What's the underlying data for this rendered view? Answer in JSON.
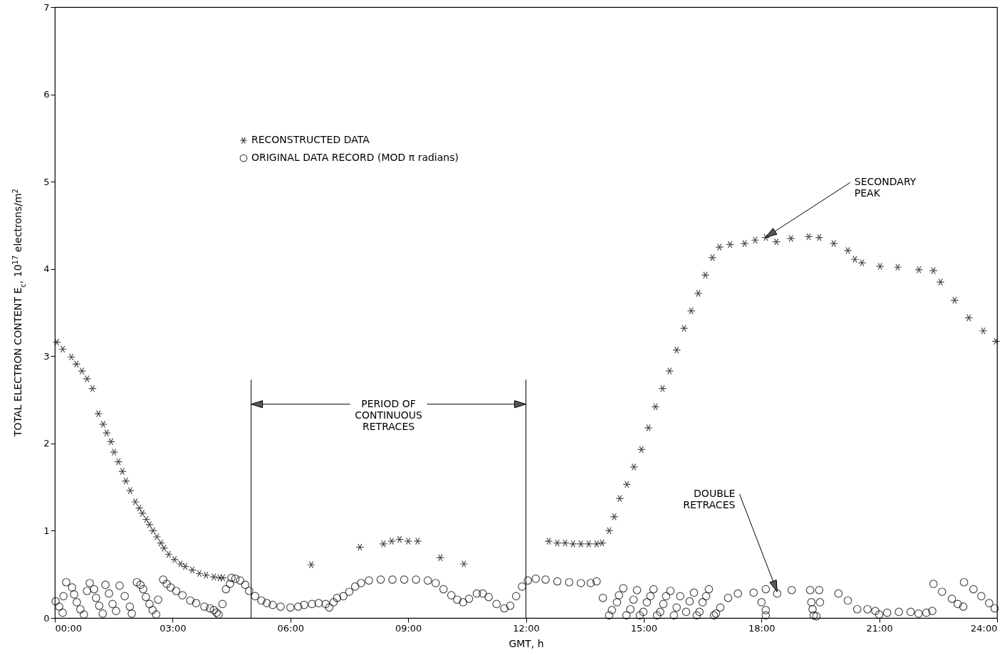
{
  "chart_data": {
    "type": "scatter",
    "xlabel": "GMT, h",
    "ylabel": "TOTAL ELECTRON CONTENT E$_{c}$, 10$^{17}$ electrons/m$^{2}$",
    "xlim": [
      0,
      24
    ],
    "ylim": [
      0,
      7
    ],
    "xticks": [
      {
        "value": 0,
        "label": "00:00"
      },
      {
        "value": 3,
        "label": "03:00"
      },
      {
        "value": 6,
        "label": "06:00"
      },
      {
        "value": 9,
        "label": "09:00"
      },
      {
        "value": 12,
        "label": "12:00"
      },
      {
        "value": 15,
        "label": "15:00"
      },
      {
        "value": 18,
        "label": "18:00"
      },
      {
        "value": 21,
        "label": "21:00"
      },
      {
        "value": 24,
        "label": "24:00"
      }
    ],
    "yticks": [
      0,
      1,
      2,
      3,
      4,
      5,
      6,
      7
    ],
    "grid": false,
    "legend": "top left",
    "series": [
      {
        "name": "RECONSTRUCTED DATA",
        "color": "#000000",
        "marker": "cross",
        "x": [
          0.05,
          0.2,
          0.42,
          0.55,
          0.69,
          0.82,
          0.96,
          1.11,
          1.23,
          1.32,
          1.43,
          1.51,
          1.62,
          1.72,
          1.81,
          1.92,
          2.05,
          2.15,
          2.23,
          2.33,
          2.41,
          2.5,
          2.6,
          2.7,
          2.78,
          2.9,
          3.05,
          3.2,
          3.32,
          3.5,
          3.68,
          3.85,
          4.05,
          4.2,
          4.28,
          6.53,
          7.77,
          8.37,
          8.58,
          8.78,
          9.0,
          9.24,
          9.82,
          10.42,
          12.58,
          12.8,
          13.0,
          13.2,
          13.4,
          13.6,
          13.8,
          13.94,
          14.12,
          14.25,
          14.39,
          14.57,
          14.75,
          14.94,
          15.12,
          15.3,
          15.48,
          15.66,
          15.84,
          16.03,
          16.21,
          16.39,
          16.57,
          16.75,
          16.93,
          17.2,
          17.57,
          17.84,
          18.11,
          18.38,
          18.75,
          19.2,
          19.47,
          19.84,
          20.2,
          20.38,
          20.56,
          21.02,
          21.47,
          22.01,
          22.38,
          22.56,
          22.92,
          23.28,
          23.65,
          23.97
        ],
        "values": [
          3.16,
          3.08,
          2.99,
          2.91,
          2.83,
          2.74,
          2.63,
          2.34,
          2.22,
          2.12,
          2.02,
          1.9,
          1.79,
          1.68,
          1.57,
          1.46,
          1.33,
          1.26,
          1.2,
          1.13,
          1.07,
          1.0,
          0.93,
          0.86,
          0.8,
          0.73,
          0.67,
          0.62,
          0.59,
          0.55,
          0.51,
          0.49,
          0.47,
          0.46,
          0.46,
          0.61,
          0.81,
          0.85,
          0.88,
          0.9,
          0.88,
          0.88,
          0.69,
          0.62,
          0.88,
          0.86,
          0.86,
          0.85,
          0.85,
          0.85,
          0.85,
          0.86,
          1.0,
          1.16,
          1.37,
          1.53,
          1.73,
          1.93,
          2.18,
          2.42,
          2.63,
          2.83,
          3.07,
          3.32,
          3.52,
          3.72,
          3.93,
          4.13,
          4.25,
          4.28,
          4.29,
          4.33,
          4.36,
          4.31,
          4.35,
          4.37,
          4.36,
          4.29,
          4.21,
          4.11,
          4.07,
          4.03,
          4.02,
          3.99,
          3.98,
          3.85,
          3.64,
          3.44,
          3.29,
          3.17
        ]
      },
      {
        "name": "ORIGINAL DATA RECORD (MOD π radians)",
        "color": "#000000",
        "marker": "circle",
        "x": [
          0.02,
          0.11,
          0.2,
          0.22,
          0.29,
          0.44,
          0.49,
          0.56,
          0.65,
          0.74,
          0.82,
          0.89,
          1.0,
          1.05,
          1.13,
          1.22,
          1.29,
          1.38,
          1.47,
          1.56,
          1.65,
          1.78,
          1.91,
          1.96,
          2.09,
          2.18,
          2.25,
          2.32,
          2.41,
          2.49,
          2.58,
          2.63,
          2.76,
          2.85,
          2.95,
          3.09,
          3.25,
          3.45,
          3.6,
          3.81,
          3.95,
          4.05,
          4.12,
          4.17,
          4.27,
          4.36,
          4.46,
          4.5,
          4.6,
          4.72,
          4.85,
          4.95,
          5.1,
          5.26,
          5.4,
          5.55,
          5.75,
          6.0,
          6.2,
          6.35,
          6.55,
          6.72,
          6.9,
          6.99,
          7.1,
          7.19,
          7.35,
          7.5,
          7.65,
          7.8,
          8.0,
          8.3,
          8.6,
          8.9,
          9.2,
          9.5,
          9.7,
          9.9,
          10.1,
          10.25,
          10.4,
          10.55,
          10.75,
          10.9,
          11.05,
          11.25,
          11.45,
          11.6,
          11.75,
          11.9,
          12.05,
          12.25,
          12.5,
          12.8,
          13.1,
          13.4,
          13.65,
          13.8,
          13.96,
          14.12,
          14.19,
          14.32,
          14.37,
          14.48,
          14.56,
          14.66,
          14.74,
          14.83,
          14.9,
          14.99,
          15.08,
          15.17,
          15.25,
          15.34,
          15.42,
          15.5,
          15.57,
          15.68,
          15.77,
          15.84,
          15.93,
          16.08,
          16.17,
          16.28,
          16.35,
          16.42,
          16.5,
          16.59,
          16.66,
          16.79,
          16.84,
          16.95,
          17.15,
          17.4,
          17.8,
          18.11,
          18.4,
          18.77,
          19.24,
          18.0,
          18.11,
          18.11,
          19.27,
          19.3,
          19.33,
          19.4,
          19.49,
          19.47,
          19.96,
          20.2,
          20.44,
          20.7,
          20.9,
          21.0,
          21.2,
          21.5,
          21.8,
          22.0,
          22.2,
          22.35,
          22.38,
          22.6,
          22.85,
          23.0,
          23.14,
          23.16,
          23.4,
          23.6,
          23.8,
          23.94
        ],
        "values": [
          0.19,
          0.13,
          0.06,
          0.25,
          0.41,
          0.35,
          0.27,
          0.18,
          0.1,
          0.04,
          0.31,
          0.4,
          0.33,
          0.23,
          0.14,
          0.05,
          0.38,
          0.28,
          0.16,
          0.08,
          0.37,
          0.25,
          0.13,
          0.05,
          0.41,
          0.38,
          0.33,
          0.24,
          0.16,
          0.09,
          0.04,
          0.21,
          0.44,
          0.39,
          0.35,
          0.31,
          0.26,
          0.2,
          0.17,
          0.13,
          0.11,
          0.09,
          0.06,
          0.04,
          0.16,
          0.33,
          0.39,
          0.46,
          0.45,
          0.43,
          0.38,
          0.31,
          0.25,
          0.2,
          0.17,
          0.15,
          0.13,
          0.12,
          0.13,
          0.15,
          0.16,
          0.17,
          0.16,
          0.12,
          0.18,
          0.23,
          0.25,
          0.3,
          0.36,
          0.4,
          0.43,
          0.44,
          0.44,
          0.44,
          0.44,
          0.43,
          0.4,
          0.33,
          0.26,
          0.21,
          0.18,
          0.22,
          0.28,
          0.28,
          0.24,
          0.16,
          0.11,
          0.14,
          0.25,
          0.36,
          0.43,
          0.45,
          0.44,
          0.42,
          0.41,
          0.4,
          0.4,
          0.42,
          0.23,
          0.03,
          0.09,
          0.18,
          0.26,
          0.34,
          0.03,
          0.1,
          0.21,
          0.32,
          0.03,
          0.07,
          0.18,
          0.25,
          0.33,
          0.03,
          0.07,
          0.16,
          0.25,
          0.31,
          0.03,
          0.12,
          0.25,
          0.07,
          0.19,
          0.29,
          0.03,
          0.07,
          0.18,
          0.25,
          0.33,
          0.03,
          0.05,
          0.12,
          0.23,
          0.28,
          0.29,
          0.33,
          0.28,
          0.32,
          0.32,
          0.18,
          0.09,
          0.03,
          0.18,
          0.1,
          0.03,
          0.02,
          0.18,
          0.32,
          0.28,
          0.2,
          0.1,
          0.1,
          0.08,
          0.04,
          0.06,
          0.07,
          0.07,
          0.05,
          0.06,
          0.08,
          0.39,
          0.3,
          0.22,
          0.16,
          0.13,
          0.41,
          0.33,
          0.25,
          0.17,
          0.11
        ]
      }
    ],
    "ref_lines": [
      {
        "axis": "x",
        "value": 5
      },
      {
        "axis": "x",
        "value": 12
      }
    ],
    "annotations": [
      {
        "text": "PERIOD OF\nCONTINUOUS\nRETRACES",
        "x": 5,
        "y": 2.45
      },
      {
        "text": "SECONDARY\nPEAK",
        "x": 18.1,
        "y": 4.36
      },
      {
        "text": "DOUBLE\nRETRACES",
        "x": 18.4,
        "y": 0.3
      }
    ]
  }
}
